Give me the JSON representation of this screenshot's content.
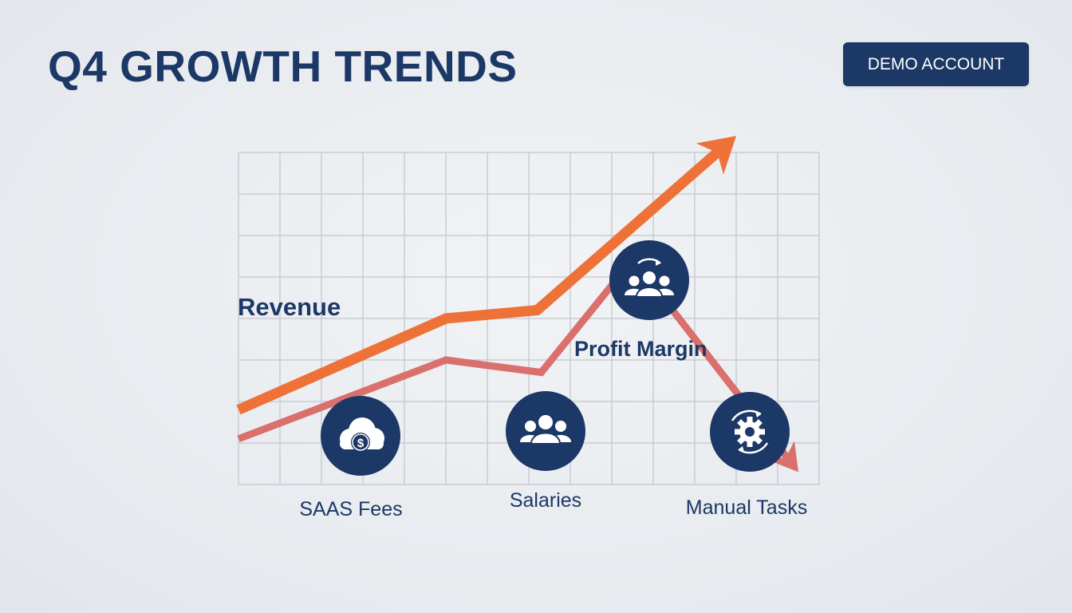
{
  "header": {
    "title": "Q4 GROWTH TRENDS",
    "demo_button": "DEMO ACCOUNT"
  },
  "colors": {
    "primary": "#1b3866",
    "accent_orange": "#ee7238",
    "accent_red": "#d9706c",
    "grid": "#c9ccd2"
  },
  "chart_data": {
    "type": "line",
    "title": "",
    "xlabel": "",
    "ylabel": "",
    "grid": true,
    "series": [
      {
        "name": "Revenue",
        "color": "#ee7238",
        "x": [
          0,
          5,
          7.2,
          12
        ],
        "y": [
          1.8,
          4.0,
          4.2,
          8.4
        ],
        "end": "arrow-up"
      },
      {
        "name": "Profit Margin",
        "color": "#d9706c",
        "x": [
          0,
          5,
          7.3,
          9,
          10,
          13.5
        ],
        "y": [
          1.1,
          3.0,
          2.7,
          4.8,
          4.8,
          0.3
        ],
        "end": "arrow-down"
      }
    ],
    "markers": [
      {
        "label": "SAAS Fees",
        "icon": "cloud-dollar-icon",
        "x": 3,
        "y": 1.25
      },
      {
        "label": "Salaries",
        "icon": "team-icon",
        "x": 7.5,
        "y": 1.35
      },
      {
        "label": "Manual Tasks",
        "icon": "gear-cycle-icon",
        "x": 12.3,
        "y": 1.35
      },
      {
        "label": "",
        "icon": "team-cycle-icon",
        "x": 10,
        "y": 5.2
      }
    ]
  }
}
